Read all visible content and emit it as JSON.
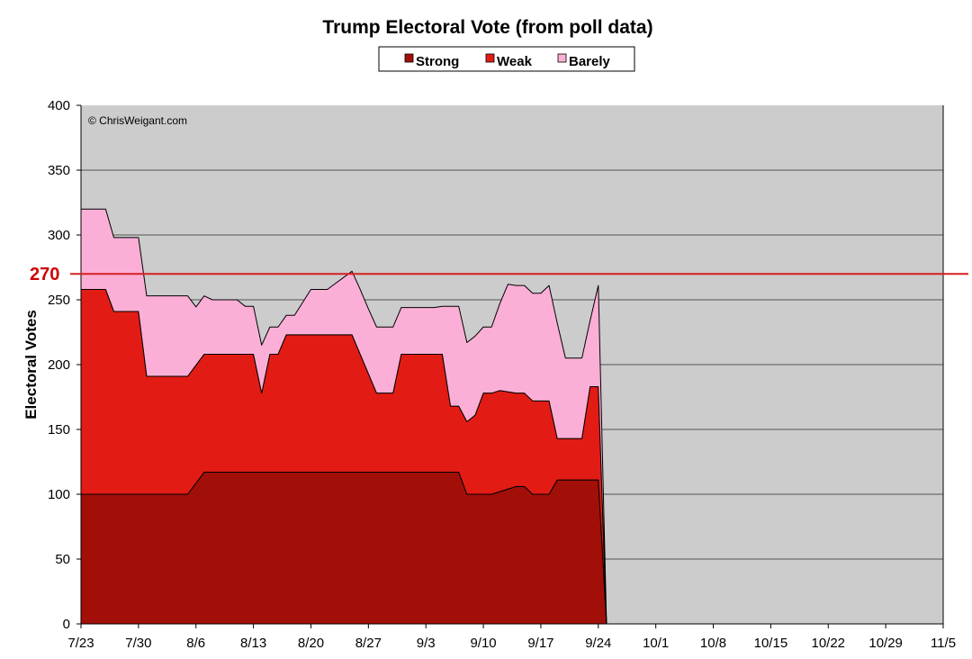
{
  "chart_data": {
    "type": "area",
    "title": "Trump Electoral Vote (from poll data)",
    "ylabel": "Electoral Votes",
    "xlabel": "",
    "credit": "© ChrisWeigant.com",
    "ylim": [
      0,
      400
    ],
    "yticks": [
      "0",
      "50",
      "100",
      "150",
      "200",
      "250",
      "300",
      "350",
      "400"
    ],
    "xtick_labels": [
      "7/23",
      "7/30",
      "8/6",
      "8/13",
      "8/20",
      "8/27",
      "9/3",
      "9/10",
      "9/17",
      "9/24",
      "10/1",
      "10/8",
      "10/15",
      "10/22",
      "10/29",
      "11/5"
    ],
    "x_unit": "days after 7/23",
    "grid": true,
    "stacked": true,
    "legend": {
      "position": "top-center",
      "entries": [
        "Strong",
        "Weak",
        "Barely"
      ]
    },
    "reference_line": {
      "value": 270,
      "label": "270",
      "color": "#d52020"
    },
    "colors": {
      "Strong": "#a20f08",
      "Weak": "#e21c14",
      "Barely": "#fcafd6",
      "plot_bg": "#cccccc"
    },
    "series": [
      {
        "name": "Strong",
        "x": [
          0,
          3,
          7,
          12,
          13,
          15,
          22,
          31,
          33,
          37,
          38,
          41,
          42,
          44,
          45,
          46,
          47,
          48,
          50,
          53,
          54,
          55,
          57,
          58,
          59,
          61,
          62,
          63,
          64
        ],
        "values": [
          100,
          100,
          100,
          100,
          100,
          117,
          117,
          117,
          117,
          117,
          117,
          117,
          117,
          117,
          117,
          117,
          100,
          100,
          100,
          106,
          106,
          100,
          100,
          111,
          111,
          111,
          111,
          111,
          0
        ]
      },
      {
        "name": "Weak",
        "x": [
          0,
          3,
          4,
          7,
          8,
          21,
          22,
          23,
          24,
          25,
          26,
          33,
          35,
          36,
          38,
          39,
          41,
          43,
          44,
          45,
          46,
          48,
          49,
          50,
          51,
          53,
          54,
          55,
          56,
          57,
          58,
          59,
          60,
          61,
          62,
          63,
          64
        ],
        "values": [
          158,
          158,
          141,
          141,
          91,
          91,
          61,
          91,
          91,
          106,
          106,
          106,
          76,
          61,
          61,
          91,
          91,
          91,
          91,
          51,
          51,
          61,
          78,
          78,
          78,
          72,
          72,
          72,
          72,
          72,
          32,
          32,
          32,
          32,
          72,
          72,
          0
        ]
      },
      {
        "name": "Barely",
        "x": [
          0,
          3,
          4,
          7,
          8,
          9,
          13,
          14,
          15,
          16,
          17,
          19,
          20,
          22,
          23,
          24,
          25,
          26,
          28,
          29,
          30,
          33,
          34,
          35,
          36,
          38,
          39,
          40,
          41,
          43,
          44,
          45,
          46,
          47,
          48,
          49,
          50,
          52,
          53,
          55,
          56,
          57,
          58,
          59,
          60,
          61,
          62,
          63,
          64
        ],
        "values": [
          62,
          62,
          57,
          57,
          62,
          62,
          62,
          45,
          45,
          42,
          42,
          42,
          37,
          37,
          21,
          21,
          15,
          15,
          35,
          35,
          35,
          49,
          50,
          50,
          51,
          51,
          36,
          36,
          36,
          36,
          37,
          77,
          77,
          61,
          61,
          51,
          51,
          83,
          83,
          83,
          83,
          89,
          89,
          62,
          62,
          62,
          51,
          78,
          0
        ]
      }
    ]
  }
}
